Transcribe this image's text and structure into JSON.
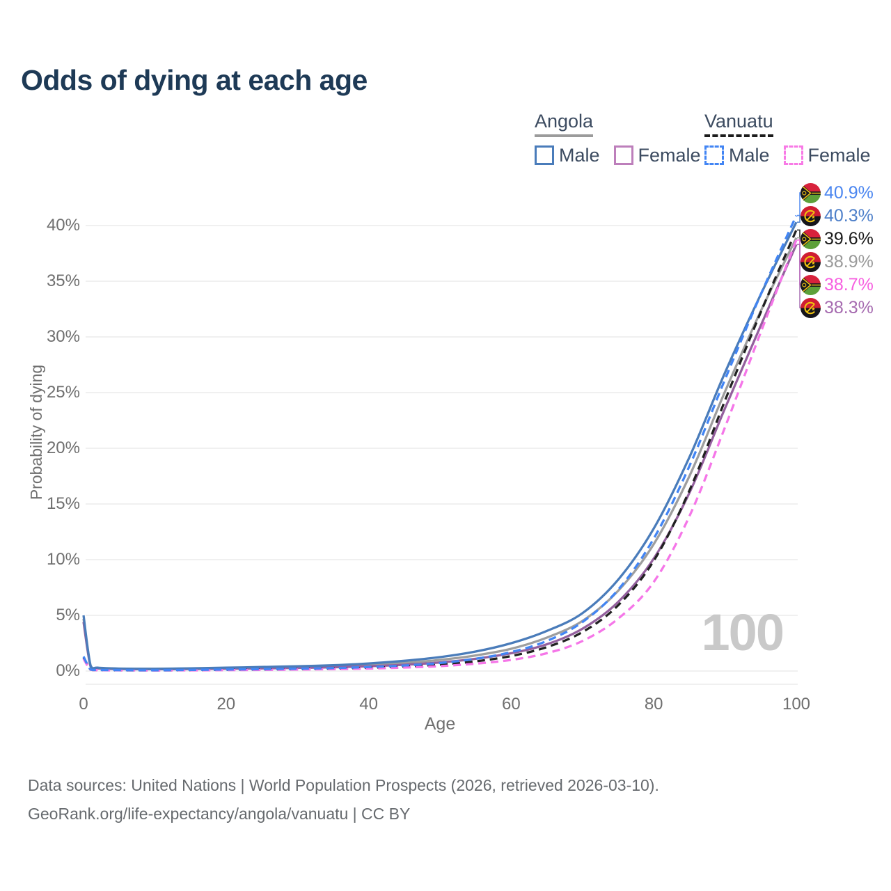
{
  "header": {
    "title": "Odds of dying at each age"
  },
  "legend": {
    "groups": [
      {
        "name": "Angola",
        "line_style": "solid",
        "underline_color": "#9b9b9b",
        "items": [
          {
            "label": "Male",
            "color": "#4a7cba",
            "dashed": false
          },
          {
            "label": "Female",
            "color": "#bd7fbb",
            "dashed": false
          }
        ]
      },
      {
        "name": "Vanuatu",
        "line_style": "dashed",
        "underline_color": "#1c1c1c",
        "items": [
          {
            "label": "Male",
            "color": "#4285f4",
            "dashed": true
          },
          {
            "label": "Female",
            "color": "#f87ae6",
            "dashed": true
          }
        ]
      }
    ]
  },
  "axes": {
    "y_title": "Probability of dying",
    "x_title": "Age",
    "y_ticks": [
      {
        "value": 0,
        "label": "0%"
      },
      {
        "value": 5,
        "label": "5%"
      },
      {
        "value": 10,
        "label": "10%"
      },
      {
        "value": 15,
        "label": "15%"
      },
      {
        "value": 20,
        "label": "20%"
      },
      {
        "value": 25,
        "label": "25%"
      },
      {
        "value": 30,
        "label": "30%"
      },
      {
        "value": 35,
        "label": "35%"
      },
      {
        "value": 40,
        "label": "40%"
      }
    ],
    "x_ticks": [
      {
        "value": 0,
        "label": "0"
      },
      {
        "value": 20,
        "label": "20"
      },
      {
        "value": 40,
        "label": "40"
      },
      {
        "value": 60,
        "label": "60"
      },
      {
        "value": 80,
        "label": "80"
      },
      {
        "value": 100,
        "label": "100"
      }
    ]
  },
  "watermark": "100",
  "end_labels": [
    {
      "flag": "vanuatu",
      "text": "40.9%",
      "value": 40.9,
      "color": "#4b86f0"
    },
    {
      "flag": "angola",
      "text": "40.3%",
      "value": 40.3,
      "color": "#4d7fc9"
    },
    {
      "flag": "vanuatu",
      "text": "39.6%",
      "value": 39.6,
      "color": "#1a1a1a"
    },
    {
      "flag": "angola",
      "text": "38.9%",
      "value": 38.9,
      "color": "#9a9a9a"
    },
    {
      "flag": "vanuatu",
      "text": "38.7%",
      "value": 38.7,
      "color": "#f75fe0"
    },
    {
      "flag": "angola",
      "text": "38.3%",
      "value": 38.3,
      "color": "#a66bb0"
    }
  ],
  "footer": {
    "line1": "Data sources: United Nations | World Population Prospects (2026, retrieved 2026-03-10).",
    "line2": "GeoRank.org/life-expectancy/angola/vanuatu | CC BY"
  },
  "chart_data": {
    "type": "line",
    "title": "Odds of dying at each age",
    "xlabel": "Age",
    "ylabel": "Probability of dying",
    "xlim": [
      0,
      100
    ],
    "ylim": [
      0,
      43.5
    ],
    "grid": "horizontal",
    "legend_position": "top-right",
    "x": [
      0,
      1,
      2,
      5,
      10,
      15,
      20,
      25,
      30,
      35,
      40,
      45,
      50,
      55,
      60,
      65,
      70,
      75,
      80,
      85,
      90,
      95,
      100
    ],
    "series": [
      {
        "name": "Angola Male",
        "country": "Angola",
        "sex": "Male",
        "color": "#4a7cba",
        "dash": "solid",
        "values": [
          5.0,
          0.48,
          0.3,
          0.22,
          0.2,
          0.24,
          0.3,
          0.36,
          0.43,
          0.52,
          0.68,
          0.92,
          1.25,
          1.75,
          2.5,
          3.6,
          5.2,
          8.2,
          12.8,
          19.2,
          26.8,
          33.8,
          40.3
        ]
      },
      {
        "name": "Angola Both",
        "country": "Angola",
        "sex": "Both",
        "color": "#9e9e9e",
        "dash": "solid",
        "values": [
          4.7,
          0.44,
          0.27,
          0.2,
          0.18,
          0.21,
          0.25,
          0.3,
          0.35,
          0.43,
          0.55,
          0.73,
          1.0,
          1.4,
          2.0,
          3.0,
          4.5,
          7.2,
          11.4,
          17.5,
          25.1,
          32.3,
          38.9
        ]
      },
      {
        "name": "Angola Female",
        "country": "Angola",
        "sex": "Female",
        "color": "#94609e",
        "dash": "solid",
        "values": [
          4.4,
          0.4,
          0.24,
          0.18,
          0.16,
          0.18,
          0.21,
          0.24,
          0.28,
          0.34,
          0.43,
          0.56,
          0.77,
          1.1,
          1.6,
          2.4,
          3.8,
          6.2,
          10.1,
          16.0,
          23.6,
          31.0,
          38.3
        ]
      },
      {
        "name": "Vanuatu Male",
        "country": "Vanuatu",
        "sex": "Male",
        "color": "#4285f4",
        "dash": "dashed",
        "values": [
          1.3,
          0.14,
          0.1,
          0.08,
          0.07,
          0.1,
          0.14,
          0.17,
          0.21,
          0.27,
          0.36,
          0.5,
          0.72,
          1.1,
          1.7,
          2.7,
          4.4,
          7.3,
          11.9,
          18.4,
          26.2,
          33.8,
          40.9
        ]
      },
      {
        "name": "Vanuatu Both",
        "country": "Vanuatu",
        "sex": "Both",
        "color": "#212121",
        "dash": "dashed",
        "values": [
          1.2,
          0.13,
          0.09,
          0.07,
          0.06,
          0.08,
          0.11,
          0.14,
          0.17,
          0.22,
          0.29,
          0.4,
          0.57,
          0.87,
          1.35,
          2.15,
          3.5,
          5.9,
          9.9,
          16.2,
          24.3,
          32.2,
          39.6
        ]
      },
      {
        "name": "Vanuatu Female",
        "country": "Vanuatu",
        "sex": "Female",
        "color": "#f576e8",
        "dash": "dashed",
        "values": [
          1.1,
          0.11,
          0.08,
          0.06,
          0.05,
          0.06,
          0.08,
          0.1,
          0.13,
          0.17,
          0.22,
          0.31,
          0.44,
          0.66,
          1.0,
          1.6,
          2.7,
          4.7,
          8.0,
          13.9,
          21.9,
          30.4,
          38.7
        ]
      }
    ]
  }
}
